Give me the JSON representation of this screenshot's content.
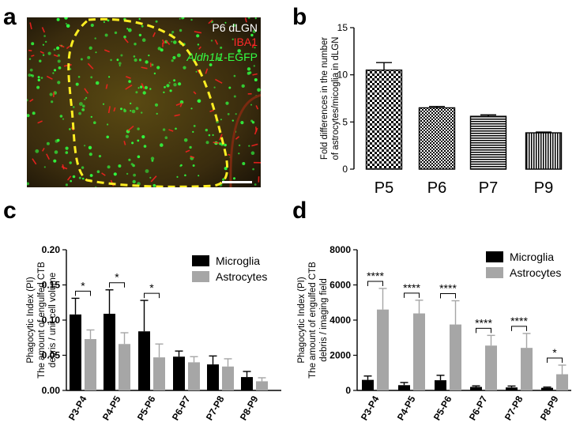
{
  "panel_letters": {
    "a": "a",
    "b": "b",
    "c": "c",
    "d": "d"
  },
  "micrograph": {
    "title": "P6 dLGN",
    "label_iba1": "IBA1",
    "label_egfp_italic": "Aldh1l1",
    "label_egfp_suffix": "-EGFP",
    "colors": {
      "background": "#3a2a10",
      "outline": "#ffee22",
      "iba1": "#ff2020",
      "egfp": "#30ff40"
    }
  },
  "chart_data": [
    {
      "id": "b",
      "type": "bar",
      "title": "",
      "ylabel_line1": "Fold differences in the number",
      "ylabel_line2": "of  astrocytes/micoglia in dLGN",
      "xlabel": "",
      "categories": [
        "P5",
        "P6",
        "P7",
        "P9"
      ],
      "values": [
        10.5,
        6.5,
        5.6,
        3.85
      ],
      "errors": [
        0.8,
        0.15,
        0.15,
        0.08
      ],
      "ylim": [
        0,
        15
      ],
      "yticks": [
        "0",
        "5",
        "10",
        "15"
      ],
      "patterns": [
        "checker-large",
        "checker-small",
        "hstripes",
        "vstripes"
      ]
    },
    {
      "id": "c",
      "type": "bar",
      "title": "",
      "ylabel_line1": "Phagocytic Index (PI)",
      "ylabel_line2": "The amount of engulfed CTB",
      "ylabel_line3": "debris / unit cell volume",
      "categories": [
        "P3-P4",
        "P4-P5",
        "P5-P6",
        "P6-P7",
        "P7-P8",
        "P8-P9"
      ],
      "series": [
        {
          "name": "Microglia",
          "color": "#000000",
          "values": [
            0.108,
            0.109,
            0.084,
            0.048,
            0.037,
            0.019
          ],
          "errors": [
            0.023,
            0.034,
            0.044,
            0.008,
            0.012,
            0.008
          ]
        },
        {
          "name": "Astrocytes",
          "color": "#a6a6a6",
          "values": [
            0.073,
            0.066,
            0.047,
            0.04,
            0.034,
            0.013
          ],
          "errors": [
            0.013,
            0.016,
            0.019,
            0.008,
            0.011,
            0.005
          ]
        }
      ],
      "ylim": [
        0,
        0.2
      ],
      "yticks": [
        "0.00",
        "0.05",
        "0.10",
        "0.15",
        "0.20"
      ],
      "significance": [
        "*",
        "*",
        "*",
        "",
        "",
        ""
      ],
      "legend": "top-right"
    },
    {
      "id": "d",
      "type": "bar",
      "title": "",
      "ylabel_line1": "Phagocytic Index (PI)",
      "ylabel_line2": "The amount of engulfed CTB",
      "ylabel_line3": "debris / imaging field",
      "categories": [
        "P3-P4",
        "P4-P5",
        "P5-P6",
        "P6-P7",
        "P7-P8",
        "P8-P9"
      ],
      "series": [
        {
          "name": "Microglia",
          "color": "#000000",
          "values": [
            600,
            300,
            580,
            200,
            170,
            150
          ],
          "errors": [
            220,
            150,
            280,
            60,
            80,
            40
          ]
        },
        {
          "name": "Astrocytes",
          "color": "#a6a6a6",
          "values": [
            4600,
            4380,
            3750,
            2550,
            2420,
            920
          ],
          "errors": [
            1200,
            750,
            1350,
            580,
            820,
            520
          ]
        }
      ],
      "ylim": [
        0,
        8000
      ],
      "yticks": [
        "0",
        "2000",
        "4000",
        "6000",
        "8000"
      ],
      "significance": [
        "****",
        "****",
        "****",
        "****",
        "****",
        "*"
      ],
      "legend": "top-right"
    }
  ]
}
